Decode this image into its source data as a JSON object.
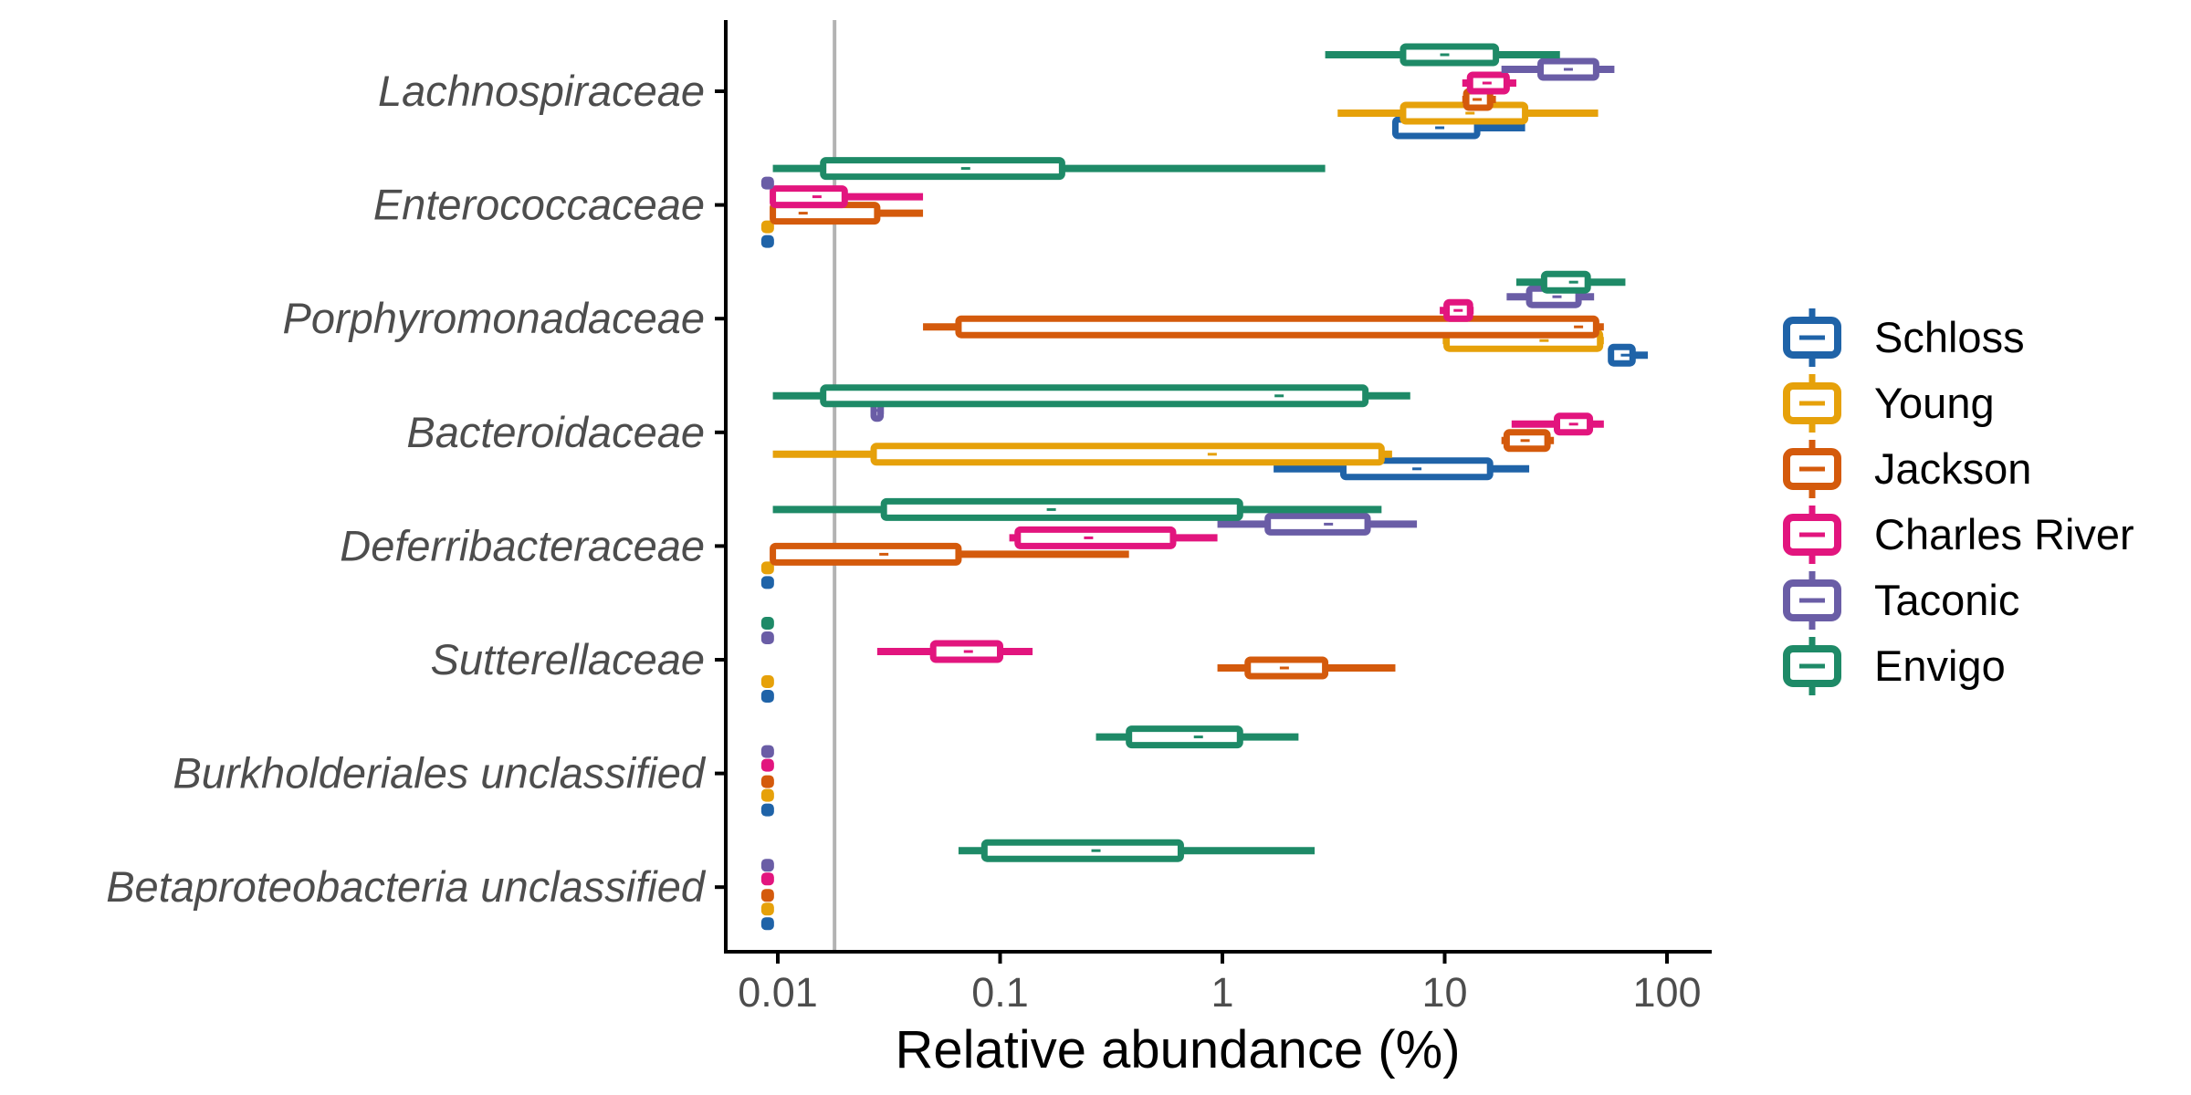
{
  "chart_data": {
    "type": "boxplot",
    "xlabel": "Relative abundance (%)",
    "ylabel": "",
    "x_scale": "log10",
    "xlim": [
      0.0065,
      150
    ],
    "x_ticks": [
      0.01,
      0.1,
      1,
      10,
      100
    ],
    "x_tick_labels": [
      "0.01",
      "0.1",
      "1",
      "10",
      "100"
    ],
    "reference_line_x": 0.018,
    "grid": false,
    "legend_position": "right",
    "categories": [
      "Lachnospiraceae",
      "Enterococcaceae",
      "Porphyromonadaceae",
      "Bacteroidaceae",
      "Deferribacteraceae",
      "Sutterellaceae",
      "Burkholderiales unclassified",
      "Betaproteobacteria unclassified"
    ],
    "series": [
      {
        "name": "Schloss",
        "color": "#1F63A8",
        "boxes": [
          {
            "min": 6,
            "q1": 6,
            "median": 9.5,
            "q3": 14,
            "max": 23
          },
          {
            "min": 0.009,
            "q1": 0.009,
            "median": 0.009,
            "q3": 0.009,
            "max": 0.009
          },
          {
            "min": 55,
            "q1": 56,
            "median": 65,
            "q3": 70,
            "max": 82
          },
          {
            "min": 1.7,
            "q1": 3.5,
            "median": 7.5,
            "q3": 16,
            "max": 24
          },
          {
            "min": 0.009,
            "q1": 0.009,
            "median": 0.009,
            "q3": 0.009,
            "max": 0.009
          },
          {
            "min": 0.009,
            "q1": 0.009,
            "median": 0.009,
            "q3": 0.009,
            "max": 0.009
          },
          {
            "min": 0.009,
            "q1": 0.009,
            "median": 0.009,
            "q3": 0.009,
            "max": 0.009
          },
          {
            "min": 0.009,
            "q1": 0.009,
            "median": 0.009,
            "q3": 0.009,
            "max": 0.009
          }
        ]
      },
      {
        "name": "Young",
        "color": "#E6A10A",
        "boxes": [
          {
            "min": 3.3,
            "q1": 6.5,
            "median": 13,
            "q3": 23,
            "max": 49
          },
          {
            "min": 0.009,
            "q1": 0.009,
            "median": 0.009,
            "q3": 0.009,
            "max": 0.009
          },
          {
            "min": 9.8,
            "q1": 10.2,
            "median": 28,
            "q3": 50,
            "max": 52
          },
          {
            "min": 0.0095,
            "q1": 0.027,
            "median": 0.9,
            "q3": 5.2,
            "max": 5.8
          },
          {
            "min": 0.009,
            "q1": 0.009,
            "median": 0.009,
            "q3": 0.009,
            "max": 0.009
          },
          {
            "min": 0.009,
            "q1": 0.009,
            "median": 0.009,
            "q3": 0.009,
            "max": 0.009
          },
          {
            "min": 0.009,
            "q1": 0.009,
            "median": 0.009,
            "q3": 0.009,
            "max": 0.009
          },
          {
            "min": 0.009,
            "q1": 0.009,
            "median": 0.009,
            "q3": 0.009,
            "max": 0.009
          }
        ]
      },
      {
        "name": "Jackson",
        "color": "#D45A0C",
        "boxes": [
          {
            "min": 12,
            "q1": 12.5,
            "median": 14,
            "q3": 16,
            "max": 17
          },
          {
            "min": 0.0095,
            "q1": 0.0095,
            "median": 0.013,
            "q3": 0.028,
            "max": 0.045
          },
          {
            "min": 0.045,
            "q1": 0.065,
            "median": 40,
            "q3": 48,
            "max": 52
          },
          {
            "min": 18,
            "q1": 19,
            "median": 23,
            "q3": 29,
            "max": 31
          },
          {
            "min": 0.0095,
            "q1": 0.0095,
            "median": 0.03,
            "q3": 0.065,
            "max": 0.38
          },
          {
            "min": 0.95,
            "q1": 1.3,
            "median": 1.9,
            "q3": 2.9,
            "max": 6
          },
          {
            "min": 0.009,
            "q1": 0.009,
            "median": 0.009,
            "q3": 0.009,
            "max": 0.009
          },
          {
            "min": 0.009,
            "q1": 0.009,
            "median": 0.009,
            "q3": 0.009,
            "max": 0.009
          }
        ]
      },
      {
        "name": "Charles River",
        "color": "#E2157E",
        "boxes": [
          {
            "min": 12,
            "q1": 13,
            "median": 15.5,
            "q3": 19,
            "max": 21
          },
          {
            "min": 0.0095,
            "q1": 0.0095,
            "median": 0.015,
            "q3": 0.02,
            "max": 0.045
          },
          {
            "min": 9.5,
            "q1": 10.2,
            "median": 11.5,
            "q3": 13,
            "max": 13.5
          },
          {
            "min": 20,
            "q1": 32,
            "median": 38,
            "q3": 45,
            "max": 52
          },
          {
            "min": 0.11,
            "q1": 0.12,
            "median": 0.25,
            "q3": 0.6,
            "max": 0.95
          },
          {
            "min": 0.028,
            "q1": 0.05,
            "median": 0.072,
            "q3": 0.1,
            "max": 0.14
          },
          {
            "min": 0.009,
            "q1": 0.009,
            "median": 0.009,
            "q3": 0.009,
            "max": 0.009
          },
          {
            "min": 0.009,
            "q1": 0.009,
            "median": 0.009,
            "q3": 0.009,
            "max": 0.009
          }
        ]
      },
      {
        "name": "Taconic",
        "color": "#6A5DA6",
        "boxes": [
          {
            "min": 18,
            "q1": 27,
            "median": 36,
            "q3": 48,
            "max": 58
          },
          {
            "min": 0.009,
            "q1": 0.009,
            "median": 0.009,
            "q3": 0.009,
            "max": 0.009
          },
          {
            "min": 19,
            "q1": 24,
            "median": 32,
            "q3": 40,
            "max": 47
          },
          {
            "min": 0.027,
            "q1": 0.027,
            "median": 0.028,
            "q3": 0.029,
            "max": 0.03
          },
          {
            "min": 0.95,
            "q1": 1.6,
            "median": 3,
            "q3": 4.5,
            "max": 7.5
          },
          {
            "min": 0.009,
            "q1": 0.009,
            "median": 0.009,
            "q3": 0.009,
            "max": 0.009
          },
          {
            "min": 0.009,
            "q1": 0.009,
            "median": 0.009,
            "q3": 0.009,
            "max": 0.009
          },
          {
            "min": 0.009,
            "q1": 0.009,
            "median": 0.009,
            "q3": 0.009,
            "max": 0.009
          }
        ]
      },
      {
        "name": "Envigo",
        "color": "#1E8A67",
        "boxes": [
          {
            "min": 2.9,
            "q1": 6.5,
            "median": 10,
            "q3": 17,
            "max": 33
          },
          {
            "min": 0.0095,
            "q1": 0.016,
            "median": 0.07,
            "q3": 0.19,
            "max": 2.9
          },
          {
            "min": 21,
            "q1": 28,
            "median": 38,
            "q3": 44,
            "max": 65
          },
          {
            "min": 0.0095,
            "q1": 0.016,
            "median": 1.8,
            "q3": 4.4,
            "max": 7
          },
          {
            "min": 0.0095,
            "q1": 0.03,
            "median": 0.17,
            "q3": 1.2,
            "max": 5.2
          },
          {
            "min": 0.009,
            "q1": 0.009,
            "median": 0.009,
            "q3": 0.009,
            "max": 0.009
          },
          {
            "min": 0.27,
            "q1": 0.38,
            "median": 0.78,
            "q3": 1.2,
            "max": 2.2
          },
          {
            "min": 0.065,
            "q1": 0.085,
            "median": 0.27,
            "q3": 0.65,
            "max": 2.6
          }
        ]
      }
    ]
  }
}
